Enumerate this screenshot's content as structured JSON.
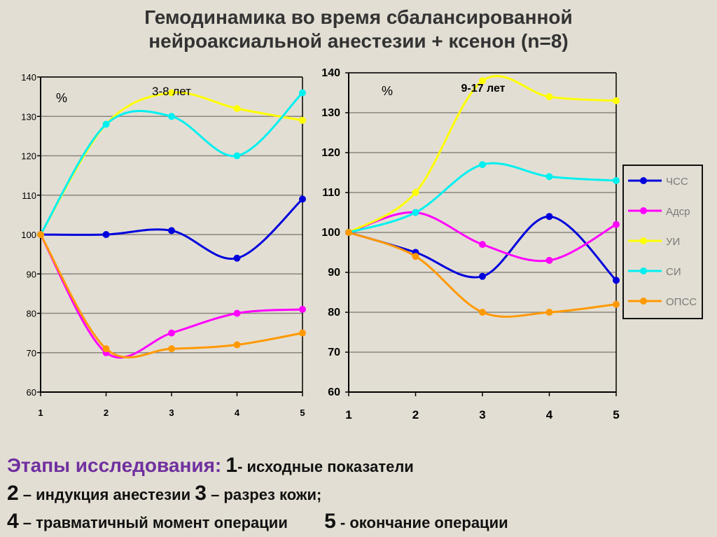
{
  "title_line1": "Гемодинамика во время сбалансированной",
  "title_line2": "нейроаксиальной анестезии + ксенон (n=8)",
  "notes": {
    "heading": "Этапы исследования:",
    "s1_num": "1",
    "s1_text": "- исходные показатели",
    "s2_num": "2",
    "s2_text": " – индукция анестезии",
    "s3_num": "3",
    "s3_text": " – разрез кожи;",
    "s4_num": "4",
    "s4_text": " – травматичный момент операции",
    "s5_num": "5",
    "s5_text": " - окончание операции"
  },
  "chart_data": [
    {
      "type": "line",
      "title": "3-8 лет",
      "ylabel": "%",
      "categories": [
        "1",
        "2",
        "3",
        "4",
        "5"
      ],
      "ylim": [
        60,
        140
      ],
      "yticks": [
        60,
        70,
        80,
        90,
        100,
        110,
        120,
        130,
        140
      ],
      "grid": true,
      "series": [
        {
          "name": "ЧСС",
          "color": "#0000dd",
          "values": [
            100,
            100,
            101,
            94,
            109
          ]
        },
        {
          "name": "Адср",
          "color": "#ff00ff",
          "values": [
            100,
            70,
            75,
            80,
            81
          ]
        },
        {
          "name": "УИ",
          "color": "#ffff00",
          "values": [
            100,
            128,
            136,
            132,
            129
          ]
        },
        {
          "name": "СИ",
          "color": "#00f0f0",
          "values": [
            100,
            128,
            130,
            120,
            136
          ]
        },
        {
          "name": "ОПСС",
          "color": "#ff9900",
          "values": [
            100,
            71,
            71,
            72,
            75
          ]
        }
      ]
    },
    {
      "type": "line",
      "title": "9-17 лет",
      "ylabel": "%",
      "categories": [
        "1",
        "2",
        "3",
        "4",
        "5"
      ],
      "ylim": [
        60,
        140
      ],
      "yticks": [
        60,
        70,
        80,
        90,
        100,
        110,
        120,
        130,
        140
      ],
      "grid": true,
      "legend": "right",
      "series": [
        {
          "name": "ЧСС",
          "color": "#0000dd",
          "values": [
            100,
            95,
            89,
            104,
            88
          ]
        },
        {
          "name": "Адср",
          "color": "#ff00ff",
          "values": [
            100,
            105,
            97,
            93,
            102
          ]
        },
        {
          "name": "УИ",
          "color": "#ffff00",
          "values": [
            100,
            110,
            138,
            134,
            133
          ]
        },
        {
          "name": "СИ",
          "color": "#00f0f0",
          "values": [
            100,
            105,
            117,
            114,
            113
          ]
        },
        {
          "name": "ОПСС",
          "color": "#ff9900",
          "values": [
            100,
            94,
            80,
            80,
            82
          ]
        }
      ]
    }
  ]
}
